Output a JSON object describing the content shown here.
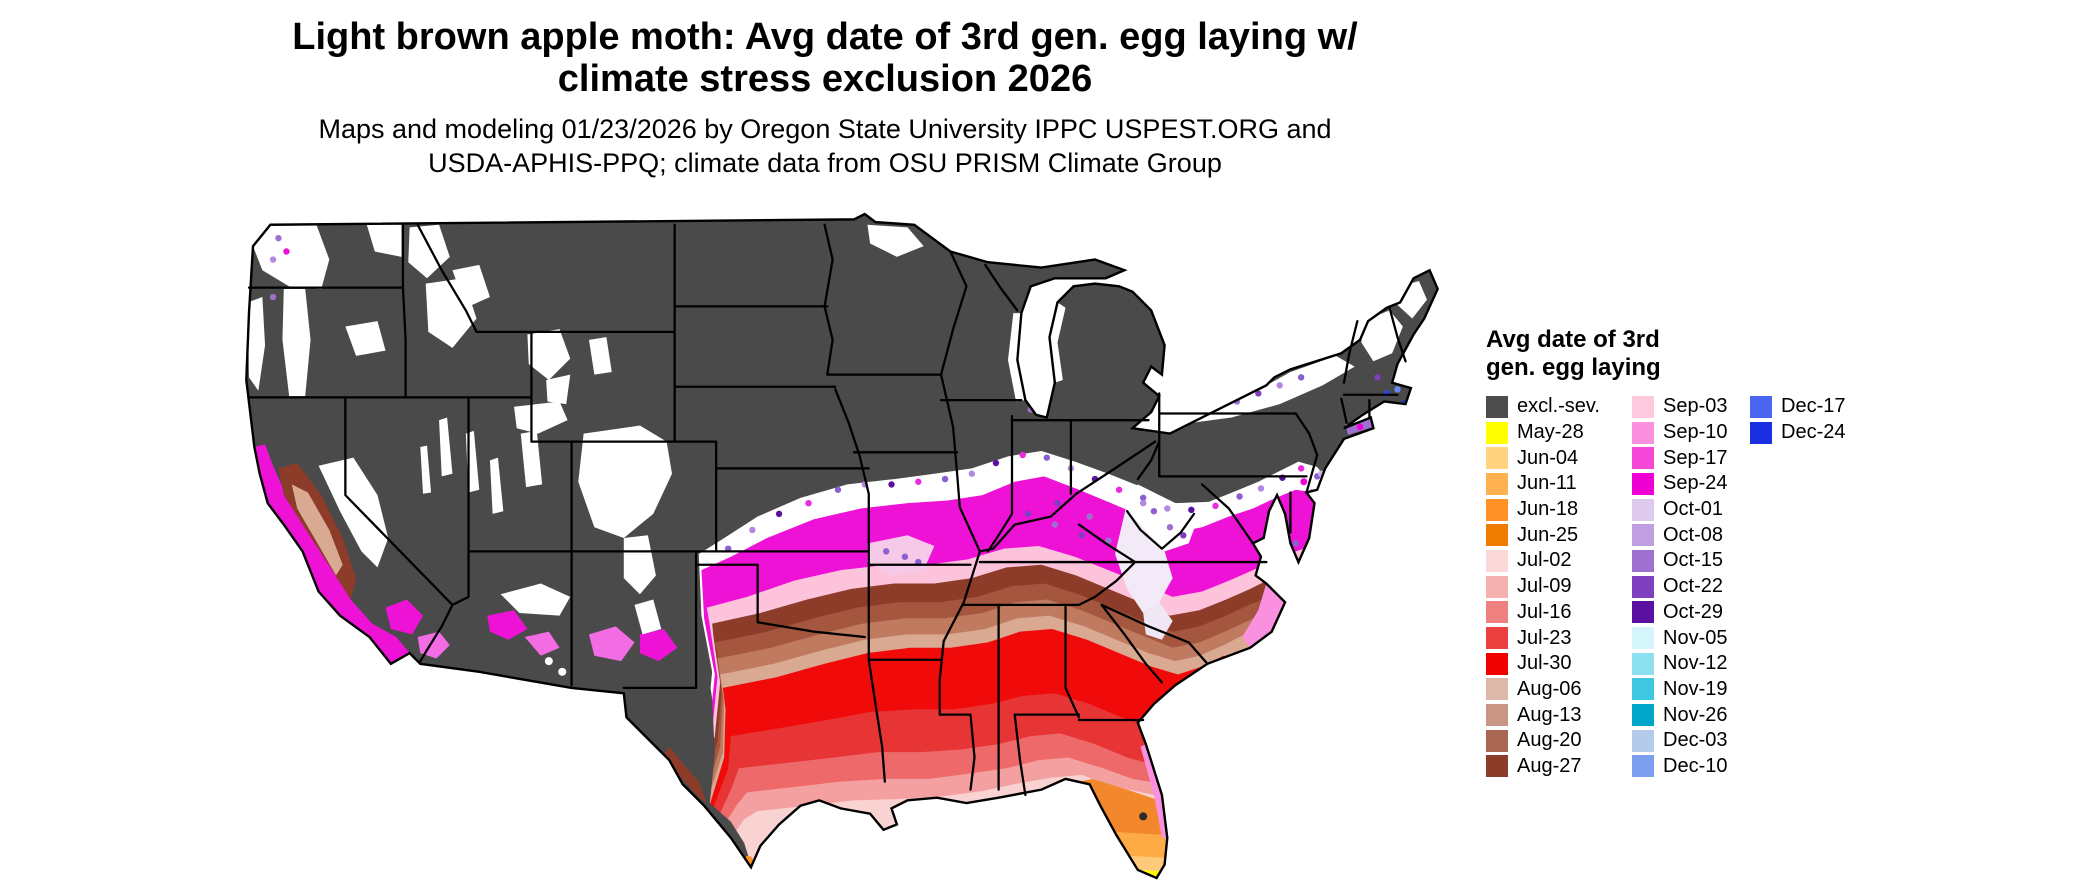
{
  "title": {
    "line1": "Light brown apple moth: Avg date of 3rd gen. egg laying w/",
    "line2": "climate stress exclusion 2026"
  },
  "subtitle": {
    "line1": "Maps and modeling 01/23/2026 by Oregon State University IPPC USPEST.ORG and",
    "line2": "USDA-APHIS-PPQ; climate data from OSU PRISM Climate Group"
  },
  "legend": {
    "title_line1": "Avg date of 3rd",
    "title_line2": "gen. egg laying",
    "columns": [
      [
        {
          "label": "excl.-sev.",
          "color": "#4d4d4d"
        },
        {
          "label": "May-28",
          "color": "#ffff00"
        },
        {
          "label": "Jun-04",
          "color": "#ffd37f"
        },
        {
          "label": "Jun-11",
          "color": "#ffb24f"
        },
        {
          "label": "Jun-18",
          "color": "#ff9126"
        },
        {
          "label": "Jun-25",
          "color": "#f07d00"
        },
        {
          "label": "Jul-02",
          "color": "#fcd9d9"
        },
        {
          "label": "Jul-09",
          "color": "#f5b0b0"
        },
        {
          "label": "Jul-16",
          "color": "#ef8080"
        },
        {
          "label": "Jul-23",
          "color": "#ea4040"
        },
        {
          "label": "Jul-30",
          "color": "#f10000"
        },
        {
          "label": "Aug-06",
          "color": "#dbb8aa"
        },
        {
          "label": "Aug-13",
          "color": "#c99584"
        },
        {
          "label": "Aug-20",
          "color": "#a96651"
        },
        {
          "label": "Aug-27",
          "color": "#8c3c28"
        }
      ],
      [
        {
          "label": "Sep-03",
          "color": "#fcc9dd"
        },
        {
          "label": "Sep-10",
          "color": "#fb8fe0"
        },
        {
          "label": "Sep-17",
          "color": "#f548d8"
        },
        {
          "label": "Sep-24",
          "color": "#ee00d4"
        },
        {
          "label": "Oct-01",
          "color": "#ddcaed"
        },
        {
          "label": "Oct-08",
          "color": "#bf9fdf"
        },
        {
          "label": "Oct-15",
          "color": "#9f70cf"
        },
        {
          "label": "Oct-22",
          "color": "#7f40bf"
        },
        {
          "label": "Oct-29",
          "color": "#5c10a0"
        },
        {
          "label": "Nov-05",
          "color": "#d4f6fb"
        },
        {
          "label": "Nov-12",
          "color": "#8ce0f0"
        },
        {
          "label": "Nov-19",
          "color": "#3fc6e0"
        },
        {
          "label": "Nov-26",
          "color": "#00a5c8"
        },
        {
          "label": "Dec-03",
          "color": "#b4cce9"
        },
        {
          "label": "Dec-10",
          "color": "#7e9ff0"
        }
      ],
      [
        {
          "label": "Dec-17",
          "color": "#4a66f0"
        },
        {
          "label": "Dec-24",
          "color": "#1c2fe0"
        }
      ]
    ]
  }
}
